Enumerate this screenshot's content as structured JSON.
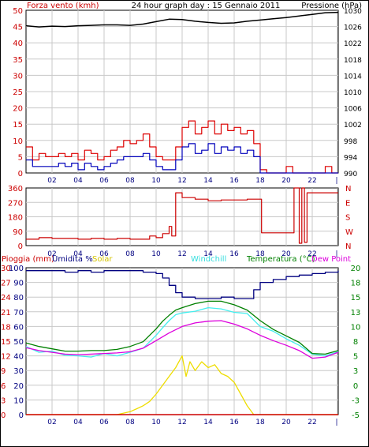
{
  "header": {
    "title": "24 hour graph day : 15 Gennaio 2011",
    "left_label": "Forza vento (kmh)",
    "right_label": "Pressione (hPa)"
  },
  "bottom_legend": {
    "rain": "Pioggia (mm)",
    "humidity": "Umidita %",
    "solar": "Solar",
    "windchill": "Windchill",
    "temperature": "Temperatura (°C)",
    "dewpoint": "Dew Point"
  },
  "colors": {
    "wind_gust": "#dd0000",
    "wind_avg": "#0000bb",
    "pressure": "#000000",
    "direction": "#cc0000",
    "humidity": "#000080",
    "temperature": "#008000",
    "dewpoint": "#dd00dd",
    "windchill": "#44eeee",
    "solar": "#eedd00",
    "rain": "#cc0000",
    "grid": "#c8c8c8",
    "axis_left": "#cc0000",
    "axis_right": "#000000",
    "axis_temp": "#008000"
  },
  "chart_data": [
    {
      "type": "line",
      "name": "wind-pressure",
      "x_ticks": [
        "02",
        "04",
        "06",
        "08",
        "10",
        "12",
        "14",
        "16",
        "18",
        "20",
        "22",
        "|"
      ],
      "y_left_ticks": [
        "0",
        "5",
        "10",
        "15",
        "20",
        "25",
        "30",
        "35",
        "40",
        "45",
        "50"
      ],
      "y_left_range": [
        0,
        50
      ],
      "y_right_ticks": [
        "990",
        "994",
        "998",
        "1002",
        "1006",
        "1010",
        "1014",
        "1018",
        "1022",
        "1026",
        "1030"
      ],
      "y_right_range": [
        990,
        1030
      ],
      "series": [
        {
          "name": "gust",
          "axis": "left",
          "x": [
            0,
            0.5,
            1,
            1.5,
            2,
            2.5,
            3,
            3.5,
            4,
            4.5,
            5,
            5.5,
            6,
            6.5,
            7,
            7.5,
            8,
            8.5,
            9,
            9.5,
            10,
            10.5,
            11,
            11.5,
            12,
            12.5,
            13,
            13.5,
            14,
            14.5,
            15,
            15.5,
            16,
            16.5,
            17,
            17.5,
            18,
            18.5,
            19,
            19.5,
            20,
            20.5,
            21,
            21.5,
            22,
            22.5,
            23,
            23.5,
            24
          ],
          "values": [
            8,
            4,
            6,
            5,
            5,
            6,
            5,
            6,
            4,
            7,
            6,
            4,
            5,
            7,
            8,
            10,
            9,
            10,
            12,
            8,
            5,
            4,
            4,
            8,
            14,
            16,
            12,
            14,
            16,
            12,
            15,
            13,
            14,
            12,
            13,
            9,
            1,
            0,
            0,
            0,
            2,
            0,
            0,
            0,
            0,
            0,
            2,
            0,
            0
          ]
        },
        {
          "name": "average",
          "axis": "left",
          "x": [
            0,
            0.5,
            1,
            1.5,
            2,
            2.5,
            3,
            3.5,
            4,
            4.5,
            5,
            5.5,
            6,
            6.5,
            7,
            7.5,
            8,
            8.5,
            9,
            9.5,
            10,
            10.5,
            11,
            11.5,
            12,
            12.5,
            13,
            13.5,
            14,
            14.5,
            15,
            15.5,
            16,
            16.5,
            17,
            17.5,
            18,
            18.5,
            19,
            19.5,
            20,
            20.5,
            21,
            21.5,
            22,
            22.5,
            23,
            23.5,
            24
          ],
          "values": [
            4,
            2,
            2,
            2,
            2,
            3,
            2,
            3,
            1,
            3,
            2,
            1,
            2,
            3,
            4,
            5,
            5,
            5,
            6,
            4,
            2,
            1,
            1,
            4,
            8,
            9,
            6,
            7,
            9,
            6,
            8,
            7,
            8,
            6,
            7,
            5,
            0,
            0,
            0,
            0,
            0,
            0,
            0,
            0,
            0,
            0,
            0,
            0,
            0
          ]
        },
        {
          "name": "pressure",
          "axis": "right",
          "x": [
            0,
            1,
            2,
            3,
            4,
            5,
            6,
            7,
            8,
            9,
            10,
            11,
            12,
            13,
            14,
            15,
            16,
            17,
            18,
            19,
            20,
            21,
            22,
            23,
            24
          ],
          "values": [
            1026.2,
            1025.9,
            1026.1,
            1026.0,
            1026.2,
            1026.3,
            1026.4,
            1026.4,
            1026.3,
            1026.6,
            1027.2,
            1027.8,
            1027.7,
            1027.3,
            1027.0,
            1026.8,
            1026.9,
            1027.3,
            1027.6,
            1027.9,
            1028.2,
            1028.6,
            1029.0,
            1029.4,
            1029.5
          ]
        }
      ]
    },
    {
      "type": "line",
      "name": "wind-direction",
      "x_ticks": [
        "02",
        "04",
        "06",
        "08",
        "10",
        "12",
        "14",
        "16",
        "18",
        "20",
        "22",
        "|"
      ],
      "y_left_ticks": [
        "0",
        "90",
        "180",
        "270",
        "360"
      ],
      "y_left_range": [
        0,
        360
      ],
      "y_right_ticks": [
        "N",
        "E",
        "S",
        "W",
        "N"
      ],
      "series": [
        {
          "name": "direction",
          "x": [
            0,
            1,
            2,
            3,
            4,
            5,
            6,
            7,
            8,
            9,
            9.5,
            10,
            10.5,
            11,
            11.2,
            11.5,
            12,
            13,
            14,
            15,
            16,
            17,
            17.9,
            18.1,
            19,
            20,
            20.5,
            20.6,
            21,
            21.2,
            21.4,
            21.6,
            22,
            23,
            24
          ],
          "values": [
            40,
            50,
            45,
            45,
            40,
            45,
            40,
            45,
            40,
            40,
            60,
            50,
            75,
            120,
            60,
            330,
            300,
            290,
            280,
            285,
            285,
            290,
            290,
            80,
            80,
            80,
            80,
            360,
            15,
            360,
            20,
            330,
            330,
            330,
            330
          ]
        }
      ]
    },
    {
      "type": "line",
      "name": "temperature-humidity-solar",
      "x_ticks": [
        "02",
        "04",
        "06",
        "08",
        "10",
        "12",
        "14",
        "16",
        "18",
        "20",
        "22",
        "|"
      ],
      "y_left_rain_ticks": [
        "0",
        "3",
        "6",
        "9",
        "12",
        "15",
        "18",
        "21",
        "24",
        "27",
        "30"
      ],
      "y_left_rain_range": [
        0,
        30
      ],
      "y_left_humidity_ticks": [
        "0",
        "10",
        "20",
        "30",
        "40",
        "50",
        "60",
        "70",
        "80",
        "90",
        "100"
      ],
      "y_left_humidity_range": [
        0,
        100
      ],
      "y_right_temp_ticks": [
        "-5",
        "-3",
        "0",
        "3",
        "5",
        "8",
        "10",
        "13",
        "15",
        "18",
        "20"
      ],
      "y_right_temp_range": [
        -5,
        20
      ],
      "series": [
        {
          "name": "humidity",
          "axis": "humidity",
          "x": [
            0,
            1,
            2,
            3,
            4,
            5,
            6,
            7,
            8,
            9,
            10,
            10.5,
            11,
            11.5,
            12,
            13,
            14,
            15,
            16,
            17,
            17.5,
            18,
            19,
            20,
            21,
            22,
            23,
            24
          ],
          "values": [
            98,
            98,
            98,
            97,
            98,
            97,
            98,
            98,
            98,
            97,
            96,
            93,
            88,
            83,
            80,
            79,
            79,
            80,
            79,
            79,
            85,
            90,
            92,
            94,
            95,
            96,
            97,
            98
          ]
        },
        {
          "name": "temperature",
          "axis": "temp",
          "x": [
            0,
            1,
            2,
            3,
            4,
            5,
            6,
            7,
            8,
            9,
            10,
            10.5,
            11,
            11.5,
            12,
            13,
            14,
            15,
            16,
            17,
            18,
            19,
            20,
            21,
            22,
            23,
            24
          ],
          "values": [
            7.2,
            6.6,
            6.2,
            5.8,
            5.8,
            5.9,
            5.9,
            6.1,
            6.6,
            7.4,
            9.6,
            10.9,
            11.9,
            12.8,
            13.2,
            13.9,
            14.3,
            14.3,
            13.7,
            12.8,
            11.0,
            9.5,
            8.4,
            7.3,
            5.4,
            5.3,
            5.9
          ]
        },
        {
          "name": "dew-point",
          "axis": "temp",
          "x": [
            0,
            1,
            2,
            3,
            4,
            5,
            6,
            7,
            8,
            9,
            10,
            11,
            12,
            13,
            14,
            15,
            16,
            17,
            18,
            19,
            20,
            21,
            22,
            23,
            24
          ],
          "values": [
            6.4,
            5.9,
            5.6,
            5.3,
            5.2,
            5.3,
            5.4,
            5.5,
            5.7,
            6.3,
            7.6,
            8.9,
            10.0,
            10.6,
            10.9,
            11.0,
            10.4,
            9.6,
            8.5,
            7.6,
            6.8,
            5.9,
            4.6,
            4.8,
            5.6
          ]
        },
        {
          "name": "windchill",
          "axis": "temp",
          "x": [
            0,
            1,
            2,
            3,
            4,
            5,
            6,
            7,
            8,
            9,
            10,
            10.5,
            11,
            11.5,
            12,
            13,
            14,
            15,
            16,
            17,
            18,
            19,
            20,
            21,
            22,
            23,
            24
          ],
          "values": [
            6.6,
            5.6,
            5.8,
            5.1,
            5.0,
            4.8,
            5.4,
            5.0,
            5.6,
            6.3,
            8.5,
            9.8,
            11.0,
            12.0,
            12.3,
            12.6,
            13.2,
            13.0,
            12.4,
            12.2,
            10.0,
            9.2,
            7.9,
            6.8,
            5.3,
            5.0,
            5.7
          ]
        },
        {
          "name": "solar",
          "axis": "humidity",
          "x": [
            0,
            7,
            7.5,
            8,
            8.5,
            9,
            9.5,
            10,
            10.5,
            11,
            11.5,
            12,
            12.3,
            12.6,
            13,
            13.5,
            14,
            14.5,
            15,
            15.5,
            16,
            16.5,
            17,
            17.5,
            24
          ],
          "values": [
            0,
            0,
            1,
            2,
            4,
            6,
            9,
            14,
            20,
            26,
            32,
            40,
            26,
            36,
            30,
            36,
            32,
            34,
            28,
            26,
            22,
            14,
            6,
            0,
            0
          ]
        },
        {
          "name": "rain",
          "axis": "rain",
          "x": [
            0,
            24
          ],
          "values": [
            0,
            0
          ]
        }
      ]
    }
  ]
}
